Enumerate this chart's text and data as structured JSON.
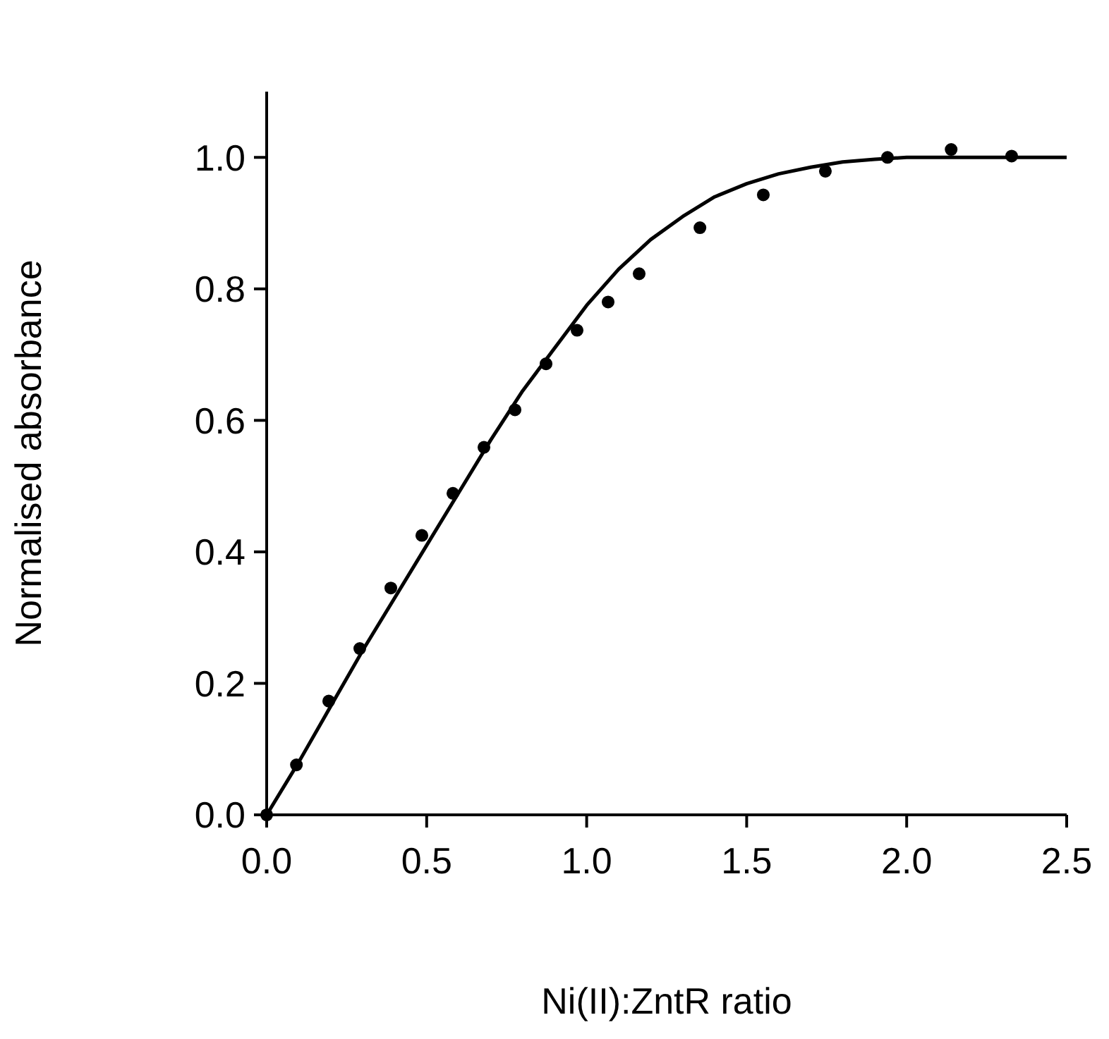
{
  "chart_data": {
    "type": "scatter",
    "xlabel": "Ni(II):ZntR ratio",
    "ylabel": "Normalised absorbance",
    "xlim": [
      0,
      2.5
    ],
    "ylim": [
      0,
      1.1
    ],
    "xticks": [
      {
        "value": 0,
        "label": "0.0"
      },
      0.5,
      {
        "value": 1,
        "label": "1.0"
      },
      1.5,
      {
        "value": 2,
        "label": "2.0"
      },
      2.5
    ],
    "yticks": [
      {
        "value": 0,
        "label": "0.0"
      },
      0.2,
      0.4,
      0.6,
      0.8,
      {
        "value": 1,
        "label": "1.0"
      }
    ],
    "grid": false,
    "series": [
      {
        "marker": "circle",
        "color": "#000000",
        "x": [
          0,
          0.093,
          0.194,
          0.291,
          0.388,
          0.485,
          0.582,
          0.679,
          0.776,
          0.873,
          0.97,
          1.067,
          1.164,
          1.354,
          1.552,
          1.746,
          1.94,
          2.139,
          2.328
        ],
        "values": [
          0,
          0.076,
          0.173,
          0.253,
          0.345,
          0.425,
          0.489,
          0.559,
          0.616,
          0.686,
          0.737,
          0.78,
          0.823,
          0.893,
          0.943,
          0.979,
          1.0,
          1.012,
          1.002
        ]
      },
      {
        "type": "line",
        "marker": "none",
        "line_style": "solid",
        "color": "#000000",
        "x": [
          0,
          0.1,
          0.2,
          0.3,
          0.4,
          0.5,
          0.6,
          0.7,
          0.8,
          0.9,
          1.0,
          1.1,
          1.2,
          1.3,
          1.4,
          1.5,
          1.6,
          1.7,
          1.8,
          1.9,
          2.0,
          2.2,
          2.5
        ],
        "values": [
          0,
          0.08,
          0.165,
          0.25,
          0.33,
          0.41,
          0.49,
          0.57,
          0.645,
          0.71,
          0.775,
          0.83,
          0.875,
          0.91,
          0.94,
          0.96,
          0.975,
          0.985,
          0.993,
          0.997,
          1.0,
          1.0,
          1.0
        ]
      }
    ]
  }
}
